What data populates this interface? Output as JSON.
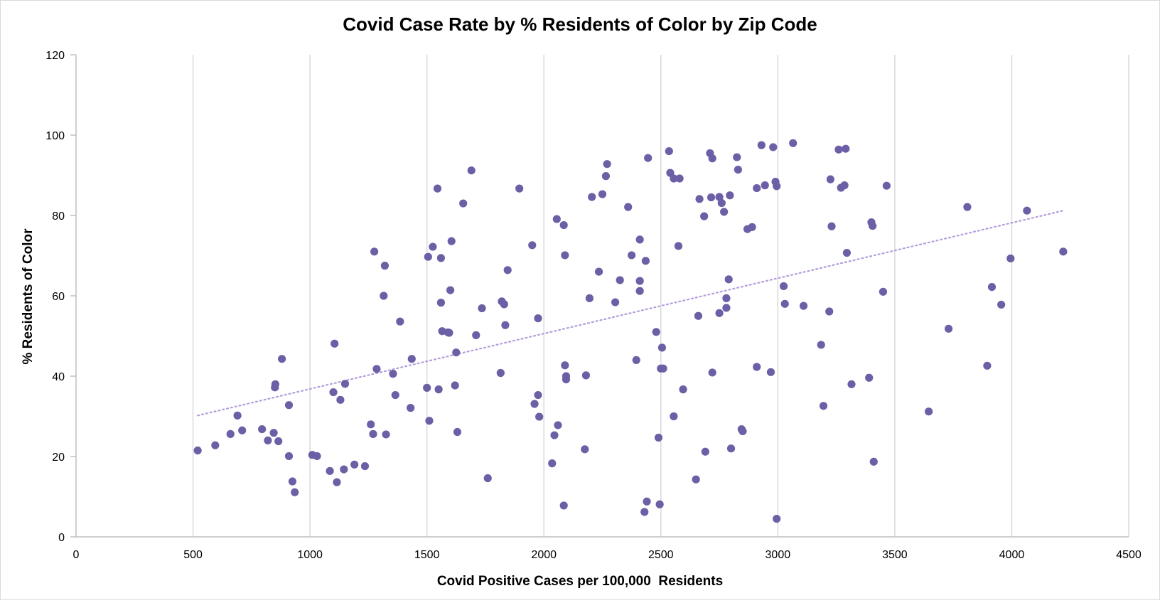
{
  "chart_data": {
    "type": "scatter",
    "title": "Covid Case Rate by % Residents of Color by Zip Code",
    "xlabel": "Covid Positive Cases per 100,000  Residents",
    "ylabel": "% Residents of Color",
    "xlim": [
      0,
      4500
    ],
    "ylim": [
      0,
      120
    ],
    "x_ticks": [
      "0",
      "500",
      "1000",
      "1500",
      "2000",
      "2500",
      "3000",
      "3500",
      "4000",
      "4500"
    ],
    "y_ticks": [
      "0",
      "20",
      "40",
      "60",
      "80",
      "100",
      "120"
    ],
    "grid": "vertical",
    "legend": "none",
    "colors": {
      "points": "#6d5fa6",
      "trendline": "#b39ddb",
      "grid": "#d9d9d9",
      "axis": "#bfbfbf"
    },
    "trendline": {
      "style": "dotted",
      "x": [
        520,
        4220
      ],
      "y": [
        30.2,
        81.2
      ]
    },
    "points": [
      [
        520,
        21.5
      ],
      [
        595,
        22.8
      ],
      [
        660,
        25.6
      ],
      [
        690,
        30.2
      ],
      [
        710,
        26.5
      ],
      [
        795,
        26.8
      ],
      [
        820,
        24.0
      ],
      [
        845,
        25.9
      ],
      [
        850,
        37.2
      ],
      [
        852,
        38.0
      ],
      [
        865,
        23.8
      ],
      [
        880,
        44.3
      ],
      [
        910,
        32.8
      ],
      [
        910,
        20.1
      ],
      [
        925,
        13.8
      ],
      [
        935,
        11.1
      ],
      [
        1010,
        20.4
      ],
      [
        1030,
        20.1
      ],
      [
        1085,
        16.4
      ],
      [
        1100,
        36.0
      ],
      [
        1105,
        48.1
      ],
      [
        1115,
        13.6
      ],
      [
        1130,
        34.1
      ],
      [
        1145,
        16.8
      ],
      [
        1150,
        38.1
      ],
      [
        1190,
        18.0
      ],
      [
        1235,
        17.6
      ],
      [
        1260,
        28.0
      ],
      [
        1270,
        25.6
      ],
      [
        1275,
        71.0
      ],
      [
        1285,
        41.8
      ],
      [
        1315,
        60.0
      ],
      [
        1320,
        67.5
      ],
      [
        1325,
        25.5
      ],
      [
        1355,
        40.6
      ],
      [
        1365,
        35.3
      ],
      [
        1385,
        53.6
      ],
      [
        1430,
        32.1
      ],
      [
        1435,
        44.3
      ],
      [
        1500,
        37.1
      ],
      [
        1505,
        69.7
      ],
      [
        1510,
        28.9
      ],
      [
        1525,
        72.2
      ],
      [
        1545,
        86.7
      ],
      [
        1550,
        36.7
      ],
      [
        1560,
        58.3
      ],
      [
        1560,
        69.4
      ],
      [
        1565,
        51.2
      ],
      [
        1590,
        50.9
      ],
      [
        1595,
        50.8
      ],
      [
        1600,
        61.4
      ],
      [
        1605,
        73.6
      ],
      [
        1620,
        37.7
      ],
      [
        1625,
        45.9
      ],
      [
        1630,
        26.1
      ],
      [
        1655,
        83.0
      ],
      [
        1690,
        91.2
      ],
      [
        1710,
        50.2
      ],
      [
        1735,
        56.9
      ],
      [
        1760,
        14.6
      ],
      [
        1815,
        40.8
      ],
      [
        1820,
        58.6
      ],
      [
        1830,
        57.9
      ],
      [
        1835,
        52.7
      ],
      [
        1845,
        66.4
      ],
      [
        1895,
        86.7
      ],
      [
        1950,
        72.6
      ],
      [
        1960,
        33.1
      ],
      [
        1975,
        54.4
      ],
      [
        1975,
        35.3
      ],
      [
        1980,
        29.9
      ],
      [
        2035,
        18.3
      ],
      [
        2045,
        25.3
      ],
      [
        2055,
        79.1
      ],
      [
        2060,
        27.8
      ],
      [
        2085,
        77.6
      ],
      [
        2085,
        7.8
      ],
      [
        2090,
        42.7
      ],
      [
        2090,
        70.1
      ],
      [
        2095,
        40.0
      ],
      [
        2095,
        39.2
      ],
      [
        2175,
        21.8
      ],
      [
        2180,
        40.2
      ],
      [
        2195,
        59.4
      ],
      [
        2205,
        84.6
      ],
      [
        2235,
        66.0
      ],
      [
        2250,
        85.3
      ],
      [
        2265,
        89.8
      ],
      [
        2270,
        92.8
      ],
      [
        2305,
        58.4
      ],
      [
        2325,
        63.9
      ],
      [
        2360,
        82.1
      ],
      [
        2375,
        70.1
      ],
      [
        2395,
        44.0
      ],
      [
        2410,
        63.7
      ],
      [
        2410,
        74.0
      ],
      [
        2410,
        61.2
      ],
      [
        2430,
        6.2
      ],
      [
        2435,
        68.7
      ],
      [
        2440,
        8.8
      ],
      [
        2445,
        94.3
      ],
      [
        2480,
        51.0
      ],
      [
        2490,
        24.7
      ],
      [
        2495,
        8.1
      ],
      [
        2500,
        41.9
      ],
      [
        2505,
        47.1
      ],
      [
        2510,
        41.9
      ],
      [
        2535,
        96.0
      ],
      [
        2540,
        90.6
      ],
      [
        2555,
        30.0
      ],
      [
        2555,
        89.2
      ],
      [
        2575,
        72.4
      ],
      [
        2580,
        89.2
      ],
      [
        2595,
        36.7
      ],
      [
        2650,
        14.3
      ],
      [
        2660,
        55.0
      ],
      [
        2665,
        84.1
      ],
      [
        2685,
        79.8
      ],
      [
        2690,
        21.2
      ],
      [
        2710,
        95.5
      ],
      [
        2715,
        84.5
      ],
      [
        2720,
        40.9
      ],
      [
        2720,
        94.2
      ],
      [
        2750,
        55.7
      ],
      [
        2750,
        84.6
      ],
      [
        2760,
        83.1
      ],
      [
        2770,
        80.9
      ],
      [
        2780,
        59.4
      ],
      [
        2780,
        57.0
      ],
      [
        2790,
        64.1
      ],
      [
        2795,
        85.0
      ],
      [
        2800,
        22.0
      ],
      [
        2825,
        94.5
      ],
      [
        2830,
        91.4
      ],
      [
        2845,
        26.8
      ],
      [
        2850,
        26.3
      ],
      [
        2870,
        76.6
      ],
      [
        2890,
        77.1
      ],
      [
        2910,
        42.3
      ],
      [
        2910,
        86.8
      ],
      [
        2930,
        97.5
      ],
      [
        2945,
        87.5
      ],
      [
        2970,
        41.0
      ],
      [
        2980,
        97.0
      ],
      [
        2990,
        88.4
      ],
      [
        2995,
        87.3
      ],
      [
        2995,
        4.5
      ],
      [
        3025,
        62.4
      ],
      [
        3030,
        58.0
      ],
      [
        3065,
        98.0
      ],
      [
        3110,
        57.5
      ],
      [
        3185,
        47.8
      ],
      [
        3195,
        32.6
      ],
      [
        3220,
        56.1
      ],
      [
        3225,
        89.0
      ],
      [
        3230,
        77.3
      ],
      [
        3260,
        96.4
      ],
      [
        3270,
        86.9
      ],
      [
        3285,
        87.5
      ],
      [
        3290,
        96.6
      ],
      [
        3295,
        70.7
      ],
      [
        3315,
        38.0
      ],
      [
        3390,
        39.6
      ],
      [
        3400,
        78.3
      ],
      [
        3405,
        77.4
      ],
      [
        3410,
        18.7
      ],
      [
        3450,
        61.0
      ],
      [
        3465,
        87.4
      ],
      [
        3645,
        31.2
      ],
      [
        3730,
        51.8
      ],
      [
        3810,
        82.1
      ],
      [
        3895,
        42.6
      ],
      [
        3915,
        62.2
      ],
      [
        3955,
        57.8
      ],
      [
        3995,
        69.3
      ],
      [
        4065,
        81.2
      ],
      [
        4220,
        71.0
      ]
    ]
  }
}
